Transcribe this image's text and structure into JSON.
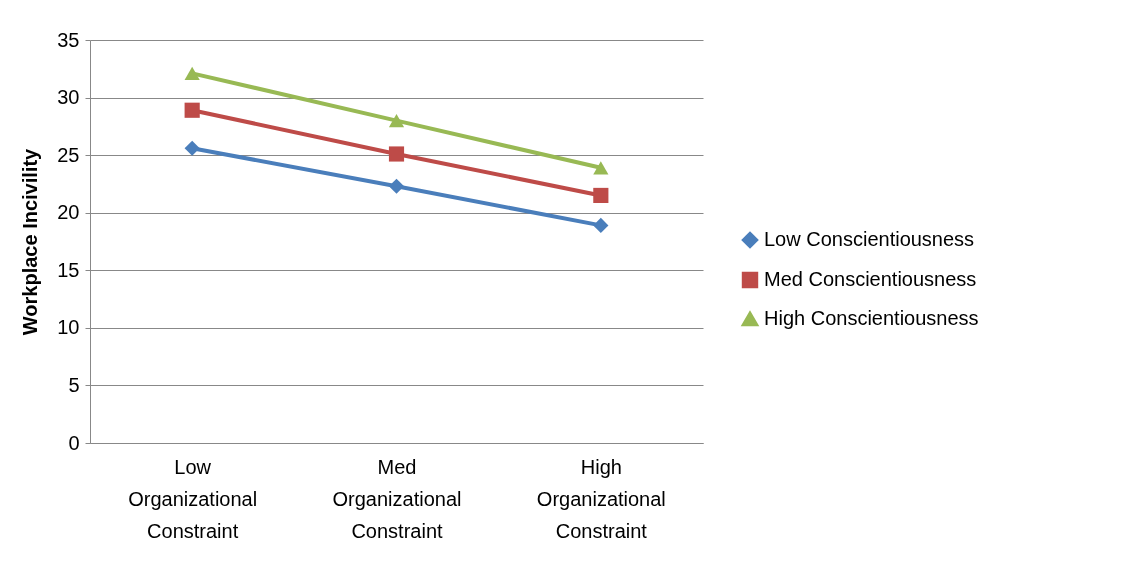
{
  "chart_data": {
    "type": "line",
    "ylabel": "Workplace Incivility",
    "categories": [
      "Low Organizational Constraint",
      "Med Organizational Constraint",
      "High Organizational Constraint"
    ],
    "series": [
      {
        "name": "Low Conscientiousness",
        "color": "#4a7ebb",
        "marker": "diamond",
        "values": [
          25.6,
          22.3,
          18.9
        ]
      },
      {
        "name": "Med Conscientiousness",
        "color": "#be4b48",
        "marker": "square",
        "values": [
          28.9,
          25.1,
          21.5
        ]
      },
      {
        "name": "High Conscientiousness",
        "color": "#98b954",
        "marker": "triangle",
        "values": [
          32.1,
          28.0,
          23.9
        ]
      }
    ],
    "ylim": [
      0,
      35
    ],
    "yticks": [
      0,
      5,
      10,
      15,
      20,
      25,
      30,
      35
    ],
    "grid": "y",
    "legend": "right",
    "line_style": "solid"
  }
}
